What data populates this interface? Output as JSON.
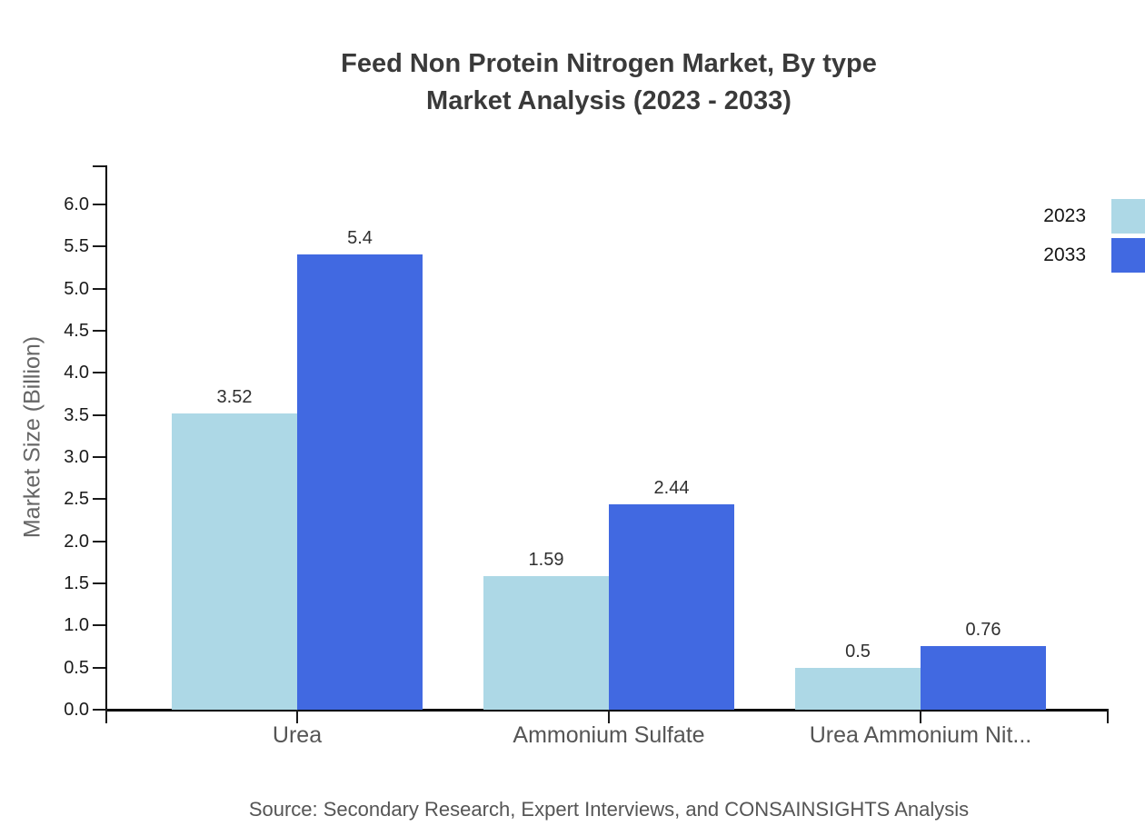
{
  "title": {
    "line1": "Feed Non Protein Nitrogen Market, By type",
    "line2": "Market Analysis (2023 - 2033)"
  },
  "source": "Source: Secondary Research, Expert Interviews, and CONSAINSIGHTS Analysis",
  "colors": {
    "series_2023": "#ADD8E6",
    "series_2033": "#4169E1",
    "title_text": "#3a3a3a",
    "axis_tick_text": "#1a1a1a",
    "category_text": "#555555",
    "axis_title_text": "#666666",
    "spine": "#000000"
  },
  "chart_data": {
    "type": "bar",
    "title": "Feed Non Protein Nitrogen Market, By type Market Analysis (2023 - 2033)",
    "categories": [
      "Urea",
      "Ammonium Sulfate",
      "Urea Ammonium Nit..."
    ],
    "series": [
      {
        "name": "2023",
        "color": "#ADD8E6",
        "values": [
          3.52,
          1.59,
          0.5
        ]
      },
      {
        "name": "2033",
        "color": "#4169E1",
        "values": [
          5.4,
          2.44,
          0.76
        ]
      }
    ],
    "value_labels": {
      "2023": [
        "3.52",
        "1.59",
        "0.5"
      ],
      "2033": [
        "5.4",
        "2.44",
        "0.76"
      ]
    },
    "xlabel": "",
    "ylabel": "Market Size (Billion)",
    "ylim": [
      0,
      6.5
    ],
    "ytick_step": 0.5,
    "yticks": [
      "0.0",
      "0.5",
      "1.0",
      "1.5",
      "2.0",
      "2.5",
      "3.0",
      "3.5",
      "4.0",
      "4.5",
      "5.0",
      "5.5",
      "6.0"
    ],
    "grid": false,
    "legend_position": "top-right",
    "legend": [
      "2023",
      "2033"
    ]
  }
}
